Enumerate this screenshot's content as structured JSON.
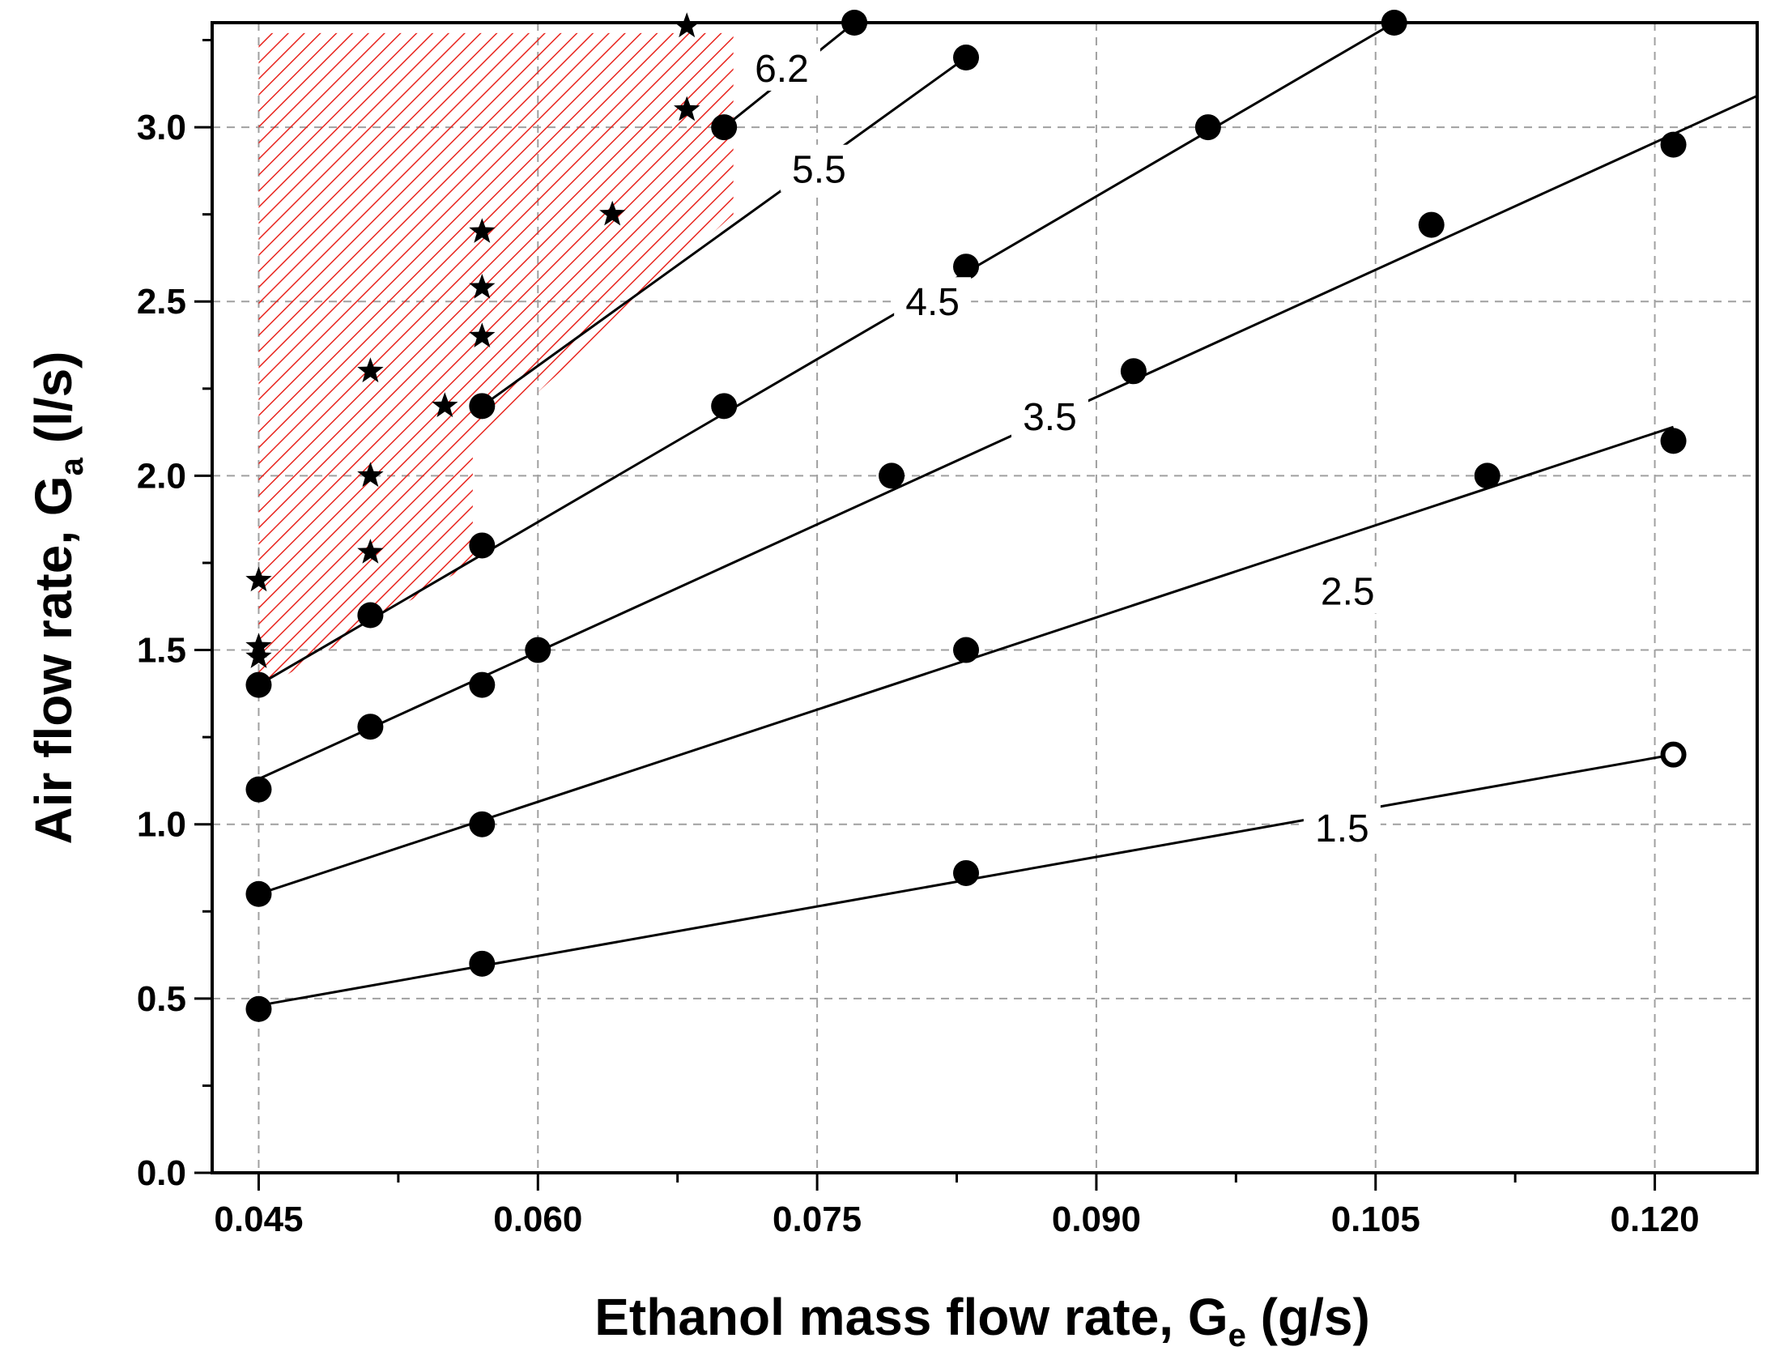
{
  "chart_data": {
    "type": "scatter",
    "xlabel": "Ethanol mass flow rate, G",
    "xlabel_sub": "e",
    "xlabel_unit": " (g/s)",
    "ylabel": "Air flow rate, G",
    "ylabel_sub": "a",
    "ylabel_unit": " (l/s)",
    "xlim": [
      0.0425,
      0.1255
    ],
    "ylim": [
      0.0,
      3.3
    ],
    "x_ticks": [
      "0.045",
      "0.060",
      "0.075",
      "0.090",
      "0.105",
      "0.120"
    ],
    "x_tick_values": [
      0.045,
      0.06,
      0.075,
      0.09,
      0.105,
      0.12
    ],
    "y_ticks": [
      "0.0",
      "0.5",
      "1.0",
      "1.5",
      "2.0",
      "2.5",
      "3.0"
    ],
    "y_tick_values": [
      0.0,
      0.5,
      1.0,
      1.5,
      2.0,
      2.5,
      3.0
    ],
    "grid": true,
    "colors": {
      "axis": "#000000",
      "hatch": "#e8251f",
      "marker": "#000000",
      "grid": "#a0a0a0"
    },
    "hatch_region": [
      {
        "x": 0.045,
        "y": 3.27
      },
      {
        "x": 0.0705,
        "y": 3.27
      },
      {
        "x": 0.0705,
        "y": 2.75
      },
      {
        "x": 0.0565,
        "y": 2.07
      },
      {
        "x": 0.0565,
        "y": 1.75
      },
      {
        "x": 0.045,
        "y": 1.38
      }
    ],
    "lines": [
      {
        "label": "1.5",
        "start": [
          0.045,
          0.48
        ],
        "end": [
          0.121,
          1.2
        ],
        "label_pos": [
          0.1032,
          0.99
        ],
        "points": [
          [
            0.045,
            0.47
          ],
          [
            0.057,
            0.6
          ],
          [
            0.083,
            0.86
          ]
        ],
        "open_points": [
          [
            0.121,
            1.2
          ]
        ]
      },
      {
        "label": "2.5",
        "start": [
          0.045,
          0.8
        ],
        "end": [
          0.121,
          2.14
        ],
        "label_pos": [
          0.1035,
          1.67
        ],
        "points": [
          [
            0.045,
            0.8
          ],
          [
            0.057,
            1.0
          ],
          [
            0.083,
            1.5
          ],
          [
            0.111,
            2.0
          ],
          [
            0.121,
            2.1
          ]
        ],
        "open_points": []
      },
      {
        "label": "3.5",
        "start": [
          0.045,
          1.13
        ],
        "end": [
          0.1255,
          3.09
        ],
        "label_pos": [
          0.0875,
          2.17
        ],
        "points": [
          [
            0.045,
            1.1
          ],
          [
            0.051,
            1.28
          ],
          [
            0.057,
            1.4
          ],
          [
            0.06,
            1.5
          ],
          [
            0.079,
            2.0
          ],
          [
            0.092,
            2.3
          ],
          [
            0.108,
            2.72
          ],
          [
            0.121,
            2.95
          ]
        ],
        "open_points": []
      },
      {
        "label": "4.5",
        "start": [
          0.045,
          1.4
        ],
        "end": [
          0.106,
          3.3
        ],
        "label_pos": [
          0.0812,
          2.5
        ],
        "points": [
          [
            0.045,
            1.4
          ],
          [
            0.051,
            1.6
          ],
          [
            0.057,
            1.8
          ],
          [
            0.07,
            2.2
          ],
          [
            0.083,
            2.6
          ],
          [
            0.096,
            3.0
          ],
          [
            0.106,
            3.3
          ]
        ],
        "open_points": []
      },
      {
        "label": "5.5",
        "start": [
          0.057,
          2.2
        ],
        "end": [
          0.083,
          3.2
        ],
        "label_pos": [
          0.0751,
          2.88
        ],
        "points": [
          [
            0.057,
            2.2
          ],
          [
            0.083,
            3.2
          ]
        ],
        "open_points": []
      },
      {
        "label": "6.2",
        "start": [
          0.07,
          3.0
        ],
        "end": [
          0.077,
          3.3
        ],
        "label_pos": [
          0.0731,
          3.17
        ],
        "points": [
          [
            0.07,
            3.0
          ],
          [
            0.077,
            3.3
          ]
        ],
        "open_points": []
      }
    ],
    "stars": [
      [
        0.045,
        1.48
      ],
      [
        0.045,
        1.51
      ],
      [
        0.045,
        1.7
      ],
      [
        0.051,
        1.78
      ],
      [
        0.051,
        2.0
      ],
      [
        0.051,
        2.3
      ],
      [
        0.055,
        2.2
      ],
      [
        0.057,
        2.4
      ],
      [
        0.057,
        2.54
      ],
      [
        0.057,
        2.7
      ],
      [
        0.064,
        2.75
      ],
      [
        0.068,
        3.05
      ],
      [
        0.068,
        3.29
      ]
    ]
  }
}
